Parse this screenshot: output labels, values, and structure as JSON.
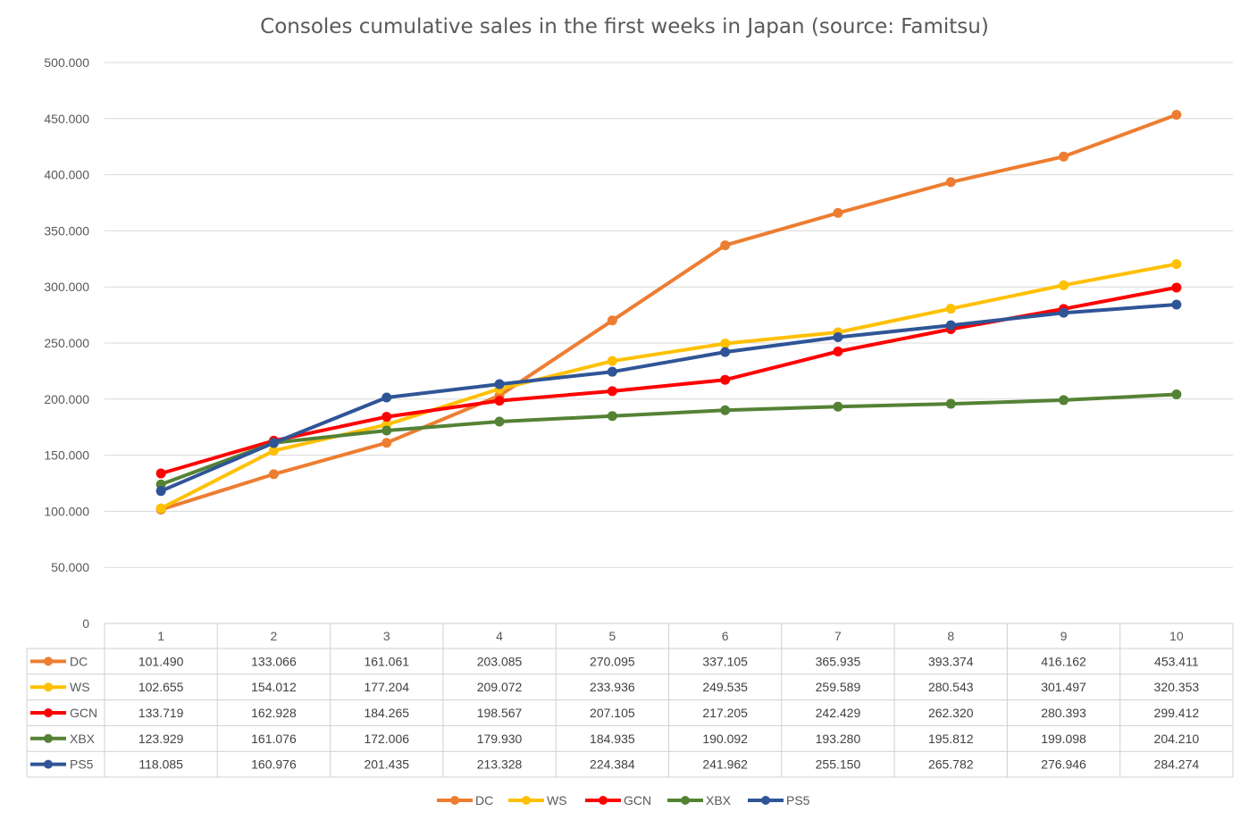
{
  "chart_data": {
    "type": "line",
    "title": "Consoles cumulative sales in the first weeks in Japan (source: Famitsu)",
    "xlabel": "",
    "ylabel": "",
    "categories": [
      "1",
      "2",
      "3",
      "4",
      "5",
      "6",
      "7",
      "8",
      "9",
      "10"
    ],
    "ylim": [
      0,
      500000
    ],
    "y_ticks": [
      {
        "value": 0,
        "label": "0"
      },
      {
        "value": 50000,
        "label": "50.000"
      },
      {
        "value": 100000,
        "label": "100.000"
      },
      {
        "value": 150000,
        "label": "150.000"
      },
      {
        "value": 200000,
        "label": "200.000"
      },
      {
        "value": 250000,
        "label": "250.000"
      },
      {
        "value": 300000,
        "label": "300.000"
      },
      {
        "value": 350000,
        "label": "350.000"
      },
      {
        "value": 400000,
        "label": "400.000"
      },
      {
        "value": 450000,
        "label": "450.000"
      },
      {
        "value": 500000,
        "label": "500.000"
      }
    ],
    "grid": true,
    "legend_position": "bottom",
    "data_table": true,
    "series": [
      {
        "name": "DC",
        "color": "#ED7D31",
        "values": [
          101490,
          133066,
          161061,
          203085,
          270095,
          337105,
          365935,
          393374,
          416162,
          453411
        ],
        "labels": [
          "101.490",
          "133.066",
          "161.061",
          "203.085",
          "270.095",
          "337.105",
          "365.935",
          "393.374",
          "416.162",
          "453.411"
        ]
      },
      {
        "name": "WS",
        "color": "#FFC000",
        "values": [
          102655,
          154012,
          177204,
          209072,
          233936,
          249535,
          259589,
          280543,
          301497,
          320353
        ],
        "labels": [
          "102.655",
          "154.012",
          "177.204",
          "209.072",
          "233.936",
          "249.535",
          "259.589",
          "280.543",
          "301.497",
          "320.353"
        ]
      },
      {
        "name": "GCN",
        "color": "#FF0000",
        "values": [
          133719,
          162928,
          184265,
          198567,
          207105,
          217205,
          242429,
          262320,
          280393,
          299412
        ],
        "labels": [
          "133.719",
          "162.928",
          "184.265",
          "198.567",
          "207.105",
          "217.205",
          "242.429",
          "262.320",
          "280.393",
          "299.412"
        ]
      },
      {
        "name": "XBX",
        "color": "#548235",
        "values": [
          123929,
          161076,
          172006,
          179930,
          184935,
          190092,
          193280,
          195812,
          199098,
          204210
        ],
        "labels": [
          "123.929",
          "161.076",
          "172.006",
          "179.930",
          "184.935",
          "190.092",
          "193.280",
          "195.812",
          "199.098",
          "204.210"
        ]
      },
      {
        "name": "PS5",
        "color": "#2F5597",
        "values": [
          118085,
          160976,
          201435,
          213328,
          224384,
          241962,
          255150,
          265782,
          276946,
          284274
        ],
        "labels": [
          "118.085",
          "160.976",
          "201.435",
          "213.328",
          "224.384",
          "241.962",
          "255.150",
          "265.782",
          "276.946",
          "284.274"
        ]
      }
    ]
  }
}
